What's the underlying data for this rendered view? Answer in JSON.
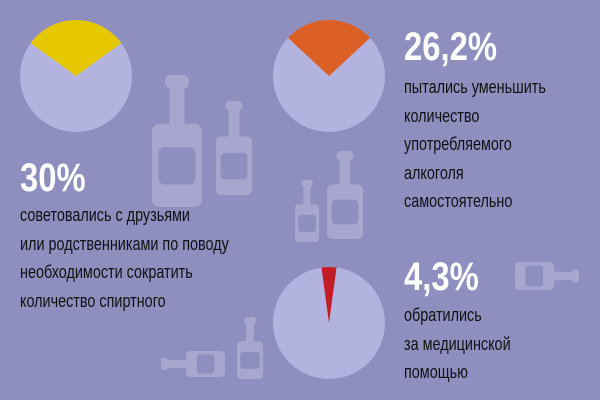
{
  "colors": {
    "background": "#8e8ebf",
    "pie_base": "#b3b3e0",
    "bottle": "#a6a6cf"
  },
  "chart_data": [
    {
      "type": "pie",
      "value_percent": 30,
      "label": "30%",
      "color": "#e6c800",
      "description": [
        "советовались с друзьями",
        "или родственниками по поводу",
        "необходимости сократить",
        "количество спиртного"
      ]
    },
    {
      "type": "pie",
      "value_percent": 26.2,
      "label": "26,2%",
      "color": "#dc5f25",
      "description": [
        "пытались уменьшить",
        "количество",
        "употребляемого",
        "алкоголя",
        "самостоятельно"
      ]
    },
    {
      "type": "pie",
      "value_percent": 4.3,
      "label": "4,3%",
      "color": "#c41c24",
      "description": [
        "обратились",
        "за медицинской",
        "помощью"
      ]
    }
  ]
}
